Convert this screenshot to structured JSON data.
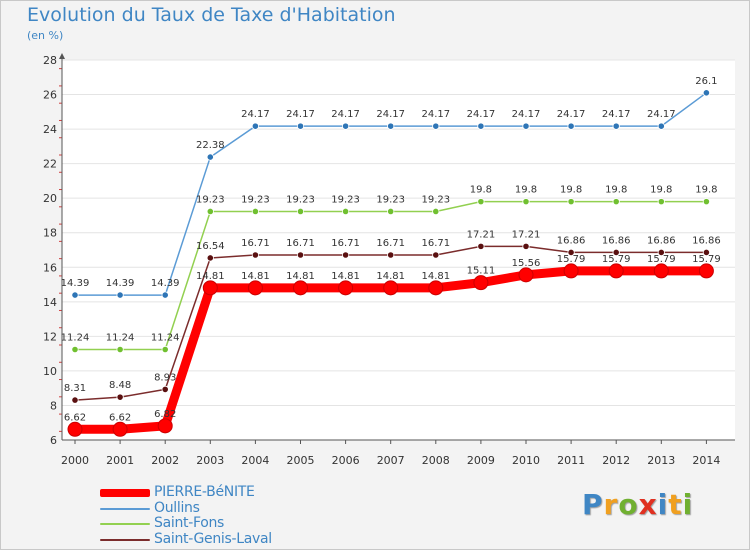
{
  "chart_data": {
    "type": "line",
    "title": "Evolution du Taux de Taxe d'Habitation",
    "unit_label": "(en %)",
    "xlabel": "",
    "ylabel": "",
    "ylim": [
      6,
      28
    ],
    "yticks": [
      6,
      8,
      10,
      12,
      14,
      16,
      18,
      20,
      22,
      24,
      26,
      28
    ],
    "categories": [
      "2000",
      "2001",
      "2002",
      "2003",
      "2004",
      "2005",
      "2006",
      "2007",
      "2008",
      "2009",
      "2010",
      "2011",
      "2012",
      "2013",
      "2014"
    ],
    "series": [
      {
        "name": "PIERRE-BéNITE",
        "color": "#ff0000",
        "marker_color": "#ff0000",
        "emphasis": true,
        "values": [
          6.62,
          6.62,
          6.82,
          14.81,
          14.81,
          14.81,
          14.81,
          14.81,
          14.81,
          15.11,
          15.56,
          15.79,
          15.79,
          15.79,
          15.79
        ],
        "labels": [
          "6.62",
          "6.62",
          "6.82",
          "14.81",
          "14.81",
          "14.81",
          "14.81",
          "14.81",
          "14.81",
          "15.11",
          "15.56",
          "15.79",
          "15.79",
          "15.79",
          "15.79"
        ]
      },
      {
        "name": "Oullins",
        "color": "#5b9bd5",
        "marker_color": "#2e75b6",
        "emphasis": false,
        "values": [
          14.39,
          14.39,
          14.39,
          22.38,
          24.17,
          24.17,
          24.17,
          24.17,
          24.17,
          24.17,
          24.17,
          24.17,
          24.17,
          24.17,
          26.1
        ],
        "labels": [
          "14.39",
          "14.39",
          "14.39",
          "22.38",
          "24.17",
          "24.17",
          "24.17",
          "24.17",
          "24.17",
          "24.17",
          "24.17",
          "24.17",
          "24.17",
          "24.17",
          "26.1"
        ]
      },
      {
        "name": "Saint-Fons",
        "color": "#92d050",
        "marker_color": "#70c030",
        "emphasis": false,
        "values": [
          11.24,
          11.24,
          11.24,
          19.23,
          19.23,
          19.23,
          19.23,
          19.23,
          19.23,
          19.8,
          19.8,
          19.8,
          19.8,
          19.8,
          19.8
        ],
        "labels": [
          "11.24",
          "11.24",
          "11.24",
          "19.23",
          "19.23",
          "19.23",
          "19.23",
          "19.23",
          "19.23",
          "19.8",
          "19.8",
          "19.8",
          "19.8",
          "19.8",
          "19.8"
        ]
      },
      {
        "name": "Saint-Genis-Laval",
        "color": "#7b2c2c",
        "marker_color": "#5a1010",
        "emphasis": false,
        "values": [
          8.31,
          8.48,
          8.93,
          16.54,
          16.71,
          16.71,
          16.71,
          16.71,
          16.71,
          17.21,
          17.21,
          16.86,
          16.86,
          16.86,
          16.86
        ],
        "labels": [
          "8.31",
          "8.48",
          "8.93",
          "16.54",
          "16.71",
          "16.71",
          "16.71",
          "16.71",
          "16.71",
          "17.21",
          "17.21",
          "16.86",
          "16.86",
          "16.86",
          "16.86"
        ]
      }
    ]
  },
  "logo": {
    "letters": [
      "P",
      "r",
      "o",
      "x",
      "i",
      "t",
      "i"
    ],
    "colors": [
      "#3f86c4",
      "#f0a020",
      "#70b030",
      "#e03020",
      "#3f86c4",
      "#f0a020",
      "#70b030"
    ]
  }
}
